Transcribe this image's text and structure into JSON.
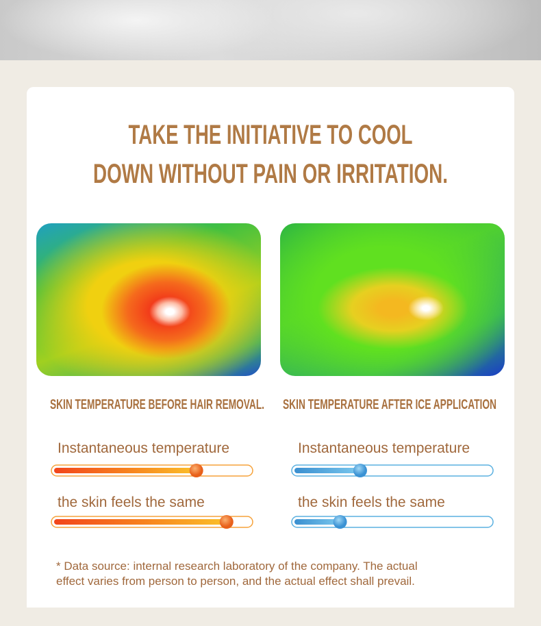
{
  "title": [
    "TAKE THE INITIATIVE TO COOL",
    "DOWN WITHOUT PAIN OR IRRITATION."
  ],
  "meter_range": [
    0,
    100
  ],
  "panels": [
    {
      "caption": "SKIN TEMPERATURE BEFORE HAIR REMOVAL.",
      "meters": [
        {
          "label": "Instantaneous temperature",
          "value": 72
        },
        {
          "label": "the skin feels the same",
          "value": 87
        }
      ]
    },
    {
      "caption": "SKIN TEMPERATURE AFTER ICE APPLICATION",
      "meters": [
        {
          "label": "Instantaneous temperature",
          "value": 34
        },
        {
          "label": "the skin feels the same",
          "value": 24
        }
      ]
    }
  ],
  "footnote": [
    "* Data source: internal research laboratory of the company. The actual",
    "effect varies from person to person, and the actual effect shall prevail."
  ]
}
